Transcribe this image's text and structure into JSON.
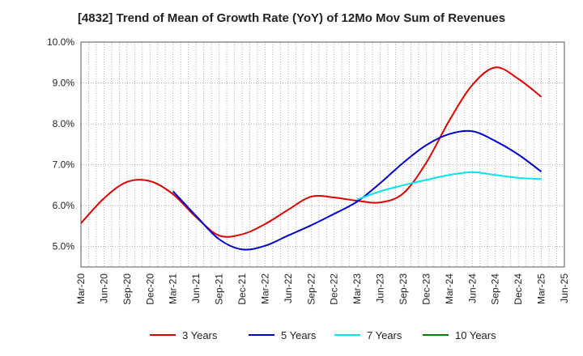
{
  "chart_data": {
    "type": "line",
    "title": "[4832]  Trend of Mean of Growth Rate (YoY) of 12Mo Mov Sum of Revenues",
    "xlabel": "",
    "ylabel": "",
    "ylim": [
      4.5,
      10.0
    ],
    "yticks": [
      5.0,
      6.0,
      7.0,
      8.0,
      9.0,
      10.0
    ],
    "ytick_labels": [
      "5.0%",
      "6.0%",
      "7.0%",
      "8.0%",
      "9.0%",
      "10.0%"
    ],
    "grid": true,
    "legend_position": "bottom",
    "categories": [
      "Mar-20",
      "Jun-20",
      "Sep-20",
      "Dec-20",
      "Mar-21",
      "Jun-21",
      "Sep-21",
      "Dec-21",
      "Mar-22",
      "Jun-22",
      "Sep-22",
      "Dec-22",
      "Mar-23",
      "Jun-23",
      "Sep-23",
      "Dec-23",
      "Mar-24",
      "Jun-24",
      "Sep-24",
      "Dec-24",
      "Mar-25",
      "Jun-25"
    ],
    "series": [
      {
        "name": "3 Years",
        "color": "#dd0000",
        "values": [
          5.57,
          6.18,
          6.58,
          6.6,
          6.28,
          5.72,
          5.27,
          5.3,
          5.55,
          5.9,
          6.22,
          6.2,
          6.12,
          6.08,
          6.3,
          7.05,
          8.08,
          8.95,
          9.38,
          9.1,
          8.66,
          null
        ]
      },
      {
        "name": "5 Years",
        "color": "#0000cc",
        "values": [
          null,
          null,
          null,
          null,
          6.35,
          5.75,
          5.18,
          4.93,
          5.02,
          5.27,
          5.52,
          5.8,
          6.1,
          6.55,
          7.05,
          7.48,
          7.75,
          7.82,
          7.58,
          7.25,
          6.83,
          null
        ]
      },
      {
        "name": "7 Years",
        "color": "#00e5ee",
        "values": [
          null,
          null,
          null,
          null,
          null,
          null,
          null,
          null,
          null,
          null,
          null,
          null,
          6.15,
          6.35,
          6.5,
          6.63,
          6.75,
          6.82,
          6.75,
          6.68,
          6.65,
          null
        ]
      },
      {
        "name": "10 Years",
        "color": "#008000",
        "values": [
          null,
          null,
          null,
          null,
          null,
          null,
          null,
          null,
          null,
          null,
          null,
          null,
          null,
          null,
          null,
          null,
          null,
          null,
          null,
          null,
          null,
          null
        ]
      }
    ]
  }
}
